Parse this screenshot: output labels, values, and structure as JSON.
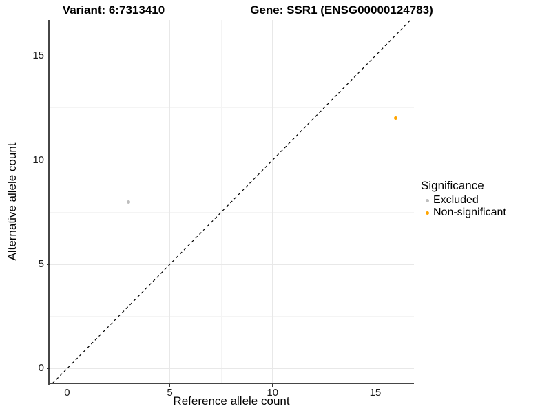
{
  "chart_data": {
    "type": "scatter",
    "title_variant": "Variant: 6:7313410",
    "title_gene": "Gene: SSR1 (ENSG00000124783)",
    "xlabel": "Reference allele count",
    "ylabel": "Alternative allele count",
    "x_domain": [
      -0.85,
      16.88
    ],
    "y_domain": [
      -0.71,
      16.72
    ],
    "x_major_ticks": [
      0,
      5,
      10,
      15
    ],
    "x_minor_ticks": [
      2.5,
      7.5,
      12.5
    ],
    "y_major_ticks": [
      0,
      5,
      10,
      15
    ],
    "y_minor_ticks": [
      2.5,
      7.5,
      12.5
    ],
    "identity_line": {
      "style": "dashed",
      "color": "#000000",
      "from": -0.71,
      "to": 16.72
    },
    "series": [
      {
        "name": "Excluded",
        "color": "#bebebe",
        "points": [
          {
            "x": 3,
            "y": 8
          }
        ]
      },
      {
        "name": "Non-significant",
        "color": "#ffa500",
        "points": [
          {
            "x": 16,
            "y": 12
          }
        ]
      }
    ],
    "legend": {
      "title": "Significance",
      "position": "right"
    },
    "grid": {
      "major_color": "#e8e8e8",
      "minor_color": "#f4f4f4",
      "axis_line_color": "#464646"
    }
  }
}
